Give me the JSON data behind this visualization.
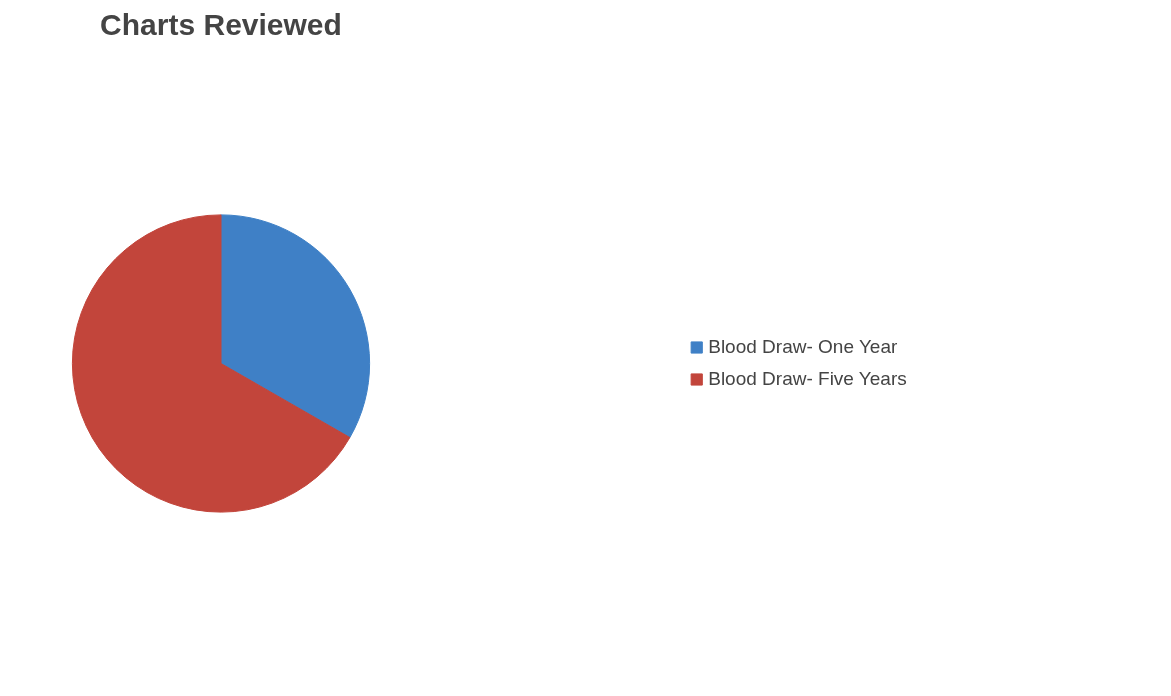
{
  "chart_data": {
    "type": "pie",
    "title": "Charts Reviewed",
    "categories": [
      "Blood Draw- One Year",
      "Blood Draw- Five Years"
    ],
    "values": [
      33.3,
      66.7
    ],
    "colors": [
      "#3f80c6",
      "#c2453b"
    ],
    "legend": "right"
  }
}
